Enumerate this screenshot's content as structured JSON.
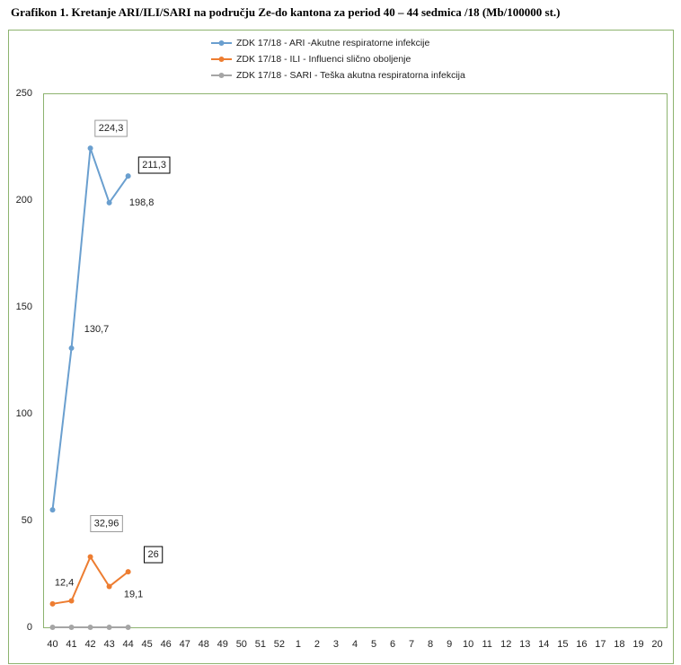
{
  "chart_data": {
    "type": "line",
    "title": "Grafikon 1. Kretanje ARI/ILI/SARI  na području Ze-do kantona za period 40 – 44 sedmica /18  (Mb/100000 st.)",
    "categories": [
      40,
      41,
      42,
      43,
      44,
      45,
      46,
      47,
      48,
      49,
      50,
      51,
      52,
      1,
      2,
      3,
      4,
      5,
      6,
      7,
      8,
      9,
      10,
      11,
      12,
      13,
      14,
      15,
      16,
      17,
      18,
      19,
      20
    ],
    "series": [
      {
        "name": "ZDK 17/18 - ARI -Akutne respiratorne infekcije",
        "color": "#6a9fcf",
        "values": [
          55,
          130.7,
          224.3,
          198.8,
          211.3,
          null,
          null,
          null,
          null,
          null,
          null,
          null,
          null,
          null,
          null,
          null,
          null,
          null,
          null,
          null,
          null,
          null,
          null,
          null,
          null,
          null,
          null,
          null,
          null,
          null,
          null,
          null,
          null
        ],
        "value_labels": [
          null,
          "130,7",
          "224,3",
          "198,8",
          "211,3",
          null,
          null,
          null,
          null,
          null,
          null,
          null,
          null,
          null,
          null,
          null,
          null,
          null,
          null,
          null,
          null,
          null,
          null,
          null,
          null,
          null,
          null,
          null,
          null,
          null,
          null,
          null,
          null
        ]
      },
      {
        "name": "ZDK 17/18 - ILI - Influenci slično oboljenje",
        "color": "#ed7d31",
        "values": [
          11,
          12.4,
          32.96,
          19.1,
          26,
          null,
          null,
          null,
          null,
          null,
          null,
          null,
          null,
          null,
          null,
          null,
          null,
          null,
          null,
          null,
          null,
          null,
          null,
          null,
          null,
          null,
          null,
          null,
          null,
          null,
          null,
          null,
          null
        ],
        "value_labels": [
          null,
          "12,4",
          "32,96",
          "19,1",
          "26",
          null,
          null,
          null,
          null,
          null,
          null,
          null,
          null,
          null,
          null,
          null,
          null,
          null,
          null,
          null,
          null,
          null,
          null,
          null,
          null,
          null,
          null,
          null,
          null,
          null,
          null,
          null,
          null
        ]
      },
      {
        "name": "ZDK 17/18 - SARI - Teška akutna respiratorna infekcija",
        "color": "#a5a5a5",
        "values": [
          0,
          0,
          0,
          0,
          0,
          null,
          null,
          null,
          null,
          null,
          null,
          null,
          null,
          null,
          null,
          null,
          null,
          null,
          null,
          null,
          null,
          null,
          null,
          null,
          null,
          null,
          null,
          null,
          null,
          null,
          null,
          null,
          null
        ]
      }
    ],
    "ylim": [
      0,
      250
    ],
    "yticks": [
      0,
      50,
      100,
      150,
      200,
      250
    ],
    "grid": false
  }
}
